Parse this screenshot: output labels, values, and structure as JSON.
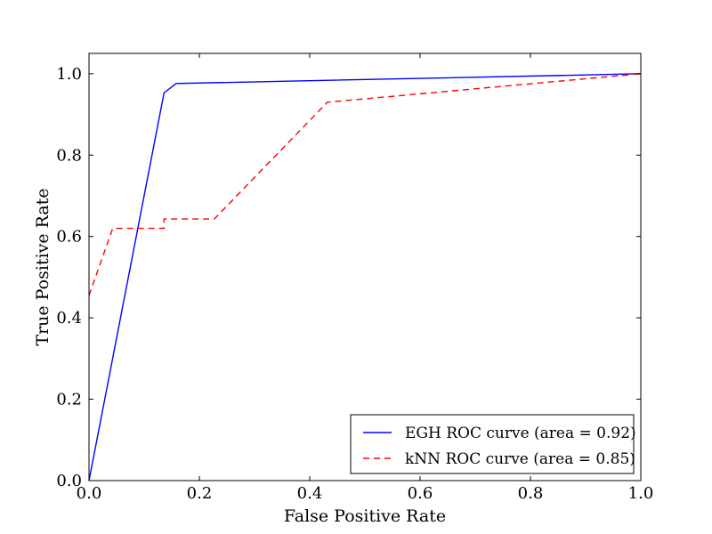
{
  "chart_data": {
    "type": "line",
    "title": "",
    "xlabel": "False Positive Rate",
    "ylabel": "True Positive Rate",
    "xlim": [
      0.0,
      1.0
    ],
    "ylim": [
      0.0,
      1.05
    ],
    "x_ticks": [
      0.0,
      0.2,
      0.4,
      0.6,
      0.8,
      1.0
    ],
    "x_tick_labels": [
      "0.0",
      "0.2",
      "0.4",
      "0.6",
      "0.8",
      "1.0"
    ],
    "y_ticks": [
      0.0,
      0.2,
      0.4,
      0.6,
      0.8,
      1.0
    ],
    "y_tick_labels": [
      "0.0",
      "0.2",
      "0.4",
      "0.6",
      "0.8",
      "1.0"
    ],
    "grid": false,
    "legend_position": "lower-right",
    "series": [
      {
        "name": "EGH ROC curve (area = 0.92)",
        "color": "#0000ff",
        "style": "solid",
        "x": [
          0.0,
          0.136,
          0.158,
          1.0
        ],
        "y": [
          0.0,
          0.953,
          0.976,
          1.0
        ]
      },
      {
        "name": "kNN ROC curve (area = 0.85)",
        "color": "#ff0000",
        "style": "dashed",
        "x": [
          0.0,
          0.043,
          0.136,
          0.136,
          0.227,
          0.432,
          1.0
        ],
        "y": [
          0.455,
          0.62,
          0.62,
          0.643,
          0.643,
          0.93,
          1.0
        ]
      }
    ]
  }
}
